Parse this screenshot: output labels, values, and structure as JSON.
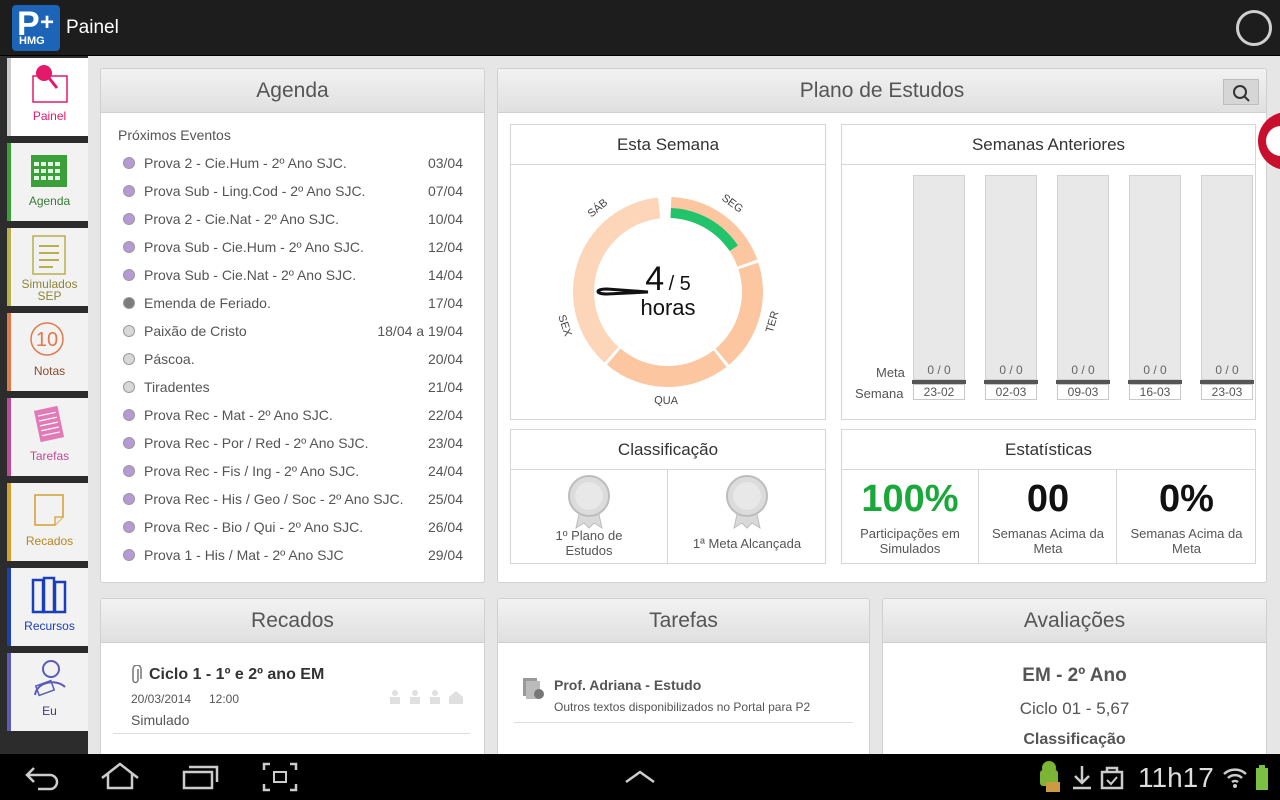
{
  "app": {
    "logo_big": "P",
    "logo_small": "HMG",
    "logo_plus": "+",
    "title": "Painel"
  },
  "nav": [
    {
      "label": "Painel",
      "color": "#e3196b",
      "icon": "pin-icon"
    },
    {
      "label": "Agenda",
      "color": "#3aa13a",
      "icon": "calendar-icon"
    },
    {
      "label": "Simulados SEP",
      "color": "#b8b04a",
      "icon": "clipboard-icon"
    },
    {
      "label": "Notas",
      "color": "#e07a4a",
      "icon": "grade-icon"
    },
    {
      "label": "Tarefas",
      "color": "#c04a96",
      "icon": "tasks-icon"
    },
    {
      "label": "Recados",
      "color": "#d1a031",
      "icon": "note-icon"
    },
    {
      "label": "Recursos",
      "color": "#1a3fb8",
      "icon": "books-icon"
    },
    {
      "label": "Eu",
      "color": "#5b5bb8",
      "icon": "user-icon"
    }
  ],
  "nav_number": "10",
  "agenda": {
    "title": "Agenda",
    "subtitle": "Próximos Eventos",
    "events": [
      {
        "title": "Prova 2 - Cie.Hum - 2º Ano SJC.",
        "date": "03/04",
        "color": "#b59ad6"
      },
      {
        "title": "Prova Sub - Ling.Cod - 2º Ano SJC.",
        "date": "07/04",
        "color": "#b59ad6"
      },
      {
        "title": "Prova 2 - Cie.Nat - 2º Ano SJC.",
        "date": "10/04",
        "color": "#b59ad6"
      },
      {
        "title": "Prova Sub - Cie.Hum - 2º Ano SJC.",
        "date": "12/04",
        "color": "#b59ad6"
      },
      {
        "title": "Prova Sub - Cie.Nat - 2º Ano SJC.",
        "date": "14/04",
        "color": "#b59ad6"
      },
      {
        "title": "Emenda de Feriado.",
        "date": "17/04",
        "color": "#7c7c7c"
      },
      {
        "title": "Paixão de Cristo",
        "date": "18/04 a 19/04",
        "color": "#d8d8d8"
      },
      {
        "title": "Páscoa.",
        "date": "20/04",
        "color": "#d8d8d8"
      },
      {
        "title": "Tiradentes",
        "date": "21/04",
        "color": "#d8d8d8"
      },
      {
        "title": "Prova Rec - Mat - 2º Ano SJC.",
        "date": "22/04",
        "color": "#b59ad6"
      },
      {
        "title": "Prova Rec - Por / Red - 2º Ano SJC.",
        "date": "23/04",
        "color": "#b59ad6"
      },
      {
        "title": "Prova Rec - Fis / Ing - 2º Ano SJC.",
        "date": "24/04",
        "color": "#b59ad6"
      },
      {
        "title": "Prova Rec - His / Geo / Soc - 2º Ano SJC.",
        "date": "25/04",
        "color": "#b59ad6"
      },
      {
        "title": "Prova Rec - Bio / Qui - 2º Ano SJC.",
        "date": "26/04",
        "color": "#b59ad6"
      },
      {
        "title": "Prova 1 - His / Mat - 2º Ano SJC",
        "date": "29/04",
        "color": "#b59ad6"
      }
    ]
  },
  "plano": {
    "title": "Plano de Estudos",
    "esta_semana": {
      "title": "Esta Semana",
      "hours_done": "4",
      "hours_sep": "/ 5",
      "hours_label": "horas",
      "days": [
        "SEG",
        "TER",
        "QUA",
        "SEX",
        "SÁB"
      ],
      "progress_fraction": 0.8,
      "colors": {
        "ring": "#fdd5b8",
        "ring_dark": "#fcc6a0",
        "progress": "#21c46a"
      }
    },
    "semanas_anteriores": {
      "title": "Semanas Anteriores",
      "meta_label": "Meta",
      "semana_label": "Semana",
      "weeks": [
        {
          "week": "23-02",
          "value": "0 / 0"
        },
        {
          "week": "02-03",
          "value": "0 / 0"
        },
        {
          "week": "09-03",
          "value": "0 / 0"
        },
        {
          "week": "16-03",
          "value": "0 / 0"
        },
        {
          "week": "23-03",
          "value": "0 / 0"
        }
      ]
    },
    "classificacao": {
      "title": "Classificação",
      "medals": [
        {
          "label": "1º Plano de Estudos"
        },
        {
          "label": "1ª Meta Alcançada"
        }
      ]
    },
    "estatisticas": {
      "title": "Estatísticas",
      "items": [
        {
          "value": "100%",
          "label": "Participações em Simulados",
          "color": "#1aa83a"
        },
        {
          "value": "00",
          "label": "Semanas Acima da Meta",
          "color": "#111111"
        },
        {
          "value": "0%",
          "label": "Semanas Acima da Meta",
          "color": "#111111"
        }
      ]
    }
  },
  "recados": {
    "title": "Recados",
    "items": [
      {
        "title": "Ciclo 1 - 1º e 2º ano EM",
        "date": "20/03/2014",
        "time": "12:00",
        "type": "Simulado"
      }
    ]
  },
  "tarefas": {
    "title": "Tarefas",
    "items": [
      {
        "title": "Prof. Adriana - Estudo",
        "desc": "Outros textos disponibilizados no Portal para P2"
      }
    ]
  },
  "avaliacoes": {
    "title": "Avaliações",
    "grade": "EM - 2º Ano",
    "cycle": "Ciclo 01 - 5,67",
    "class_label": "Classificação"
  },
  "system": {
    "clock": "11h17"
  }
}
